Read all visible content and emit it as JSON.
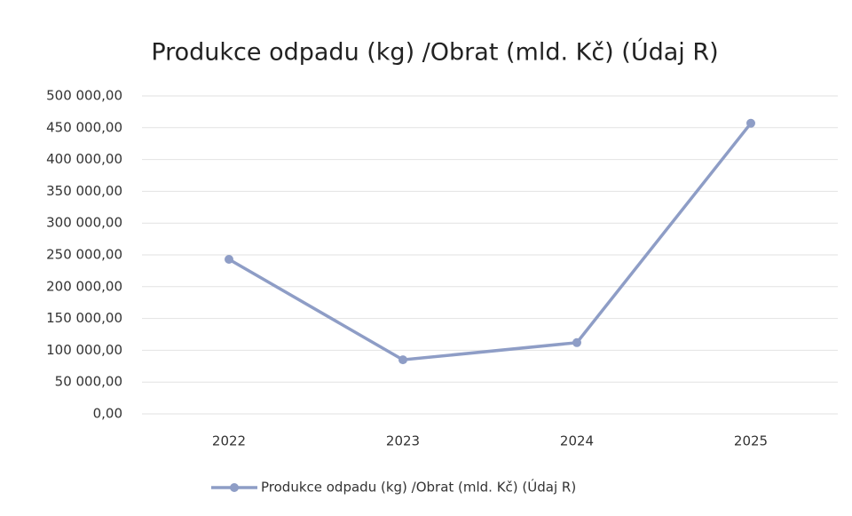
{
  "chart_data": {
    "type": "line",
    "title": "Produkce odpadu (kg) /Obrat (mld. Kč) (Údaj R)",
    "categories": [
      "2022",
      "2023",
      "2024",
      "2025"
    ],
    "series": [
      {
        "name": "Produkce odpadu (kg) /Obrat (mld. Kč) (Údaj R)",
        "color": "#8e9dc6",
        "values": [
          243000,
          85000,
          112000,
          457000
        ]
      }
    ],
    "ylim": [
      0,
      500000
    ],
    "yticks": [
      {
        "value": 0,
        "label": "0,00"
      },
      {
        "value": 50000,
        "label": "50 000,00"
      },
      {
        "value": 100000,
        "label": "100 000,00"
      },
      {
        "value": 150000,
        "label": "150 000,00"
      },
      {
        "value": 200000,
        "label": "200 000,00"
      },
      {
        "value": 250000,
        "label": "250 000,00"
      },
      {
        "value": 300000,
        "label": "300 000,00"
      },
      {
        "value": 350000,
        "label": "350 000,00"
      },
      {
        "value": 400000,
        "label": "400 000,00"
      },
      {
        "value": 450000,
        "label": "450 000,00"
      },
      {
        "value": 500000,
        "label": "500 000,00"
      }
    ],
    "grid": true,
    "legend": "bottom"
  }
}
